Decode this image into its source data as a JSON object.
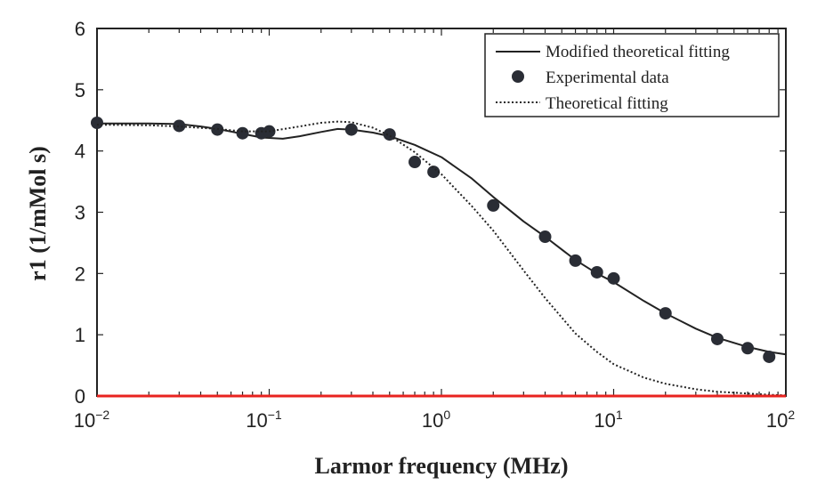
{
  "chart_data": {
    "type": "line",
    "title": "",
    "xlabel": "Larmor frequency (MHz)",
    "ylabel": "r1 (1/mMol s)",
    "xscale": "log",
    "xlim": [
      0.01,
      100
    ],
    "ylim": [
      0,
      6
    ],
    "grid": false,
    "legend_position": "top-right",
    "x_ticks": [
      {
        "value": 0.01,
        "base": "10",
        "exp": "−2"
      },
      {
        "value": 0.1,
        "base": "10",
        "exp": "−1"
      },
      {
        "value": 1,
        "base": "10",
        "exp": "0"
      },
      {
        "value": 10,
        "base": "10",
        "exp": "1"
      },
      {
        "value": 100,
        "base": "10",
        "exp": "2"
      }
    ],
    "y_ticks": [
      "0",
      "1",
      "2",
      "3",
      "4",
      "5",
      "6"
    ],
    "baseline": {
      "y": 0,
      "color": "#e8231f"
    },
    "series": [
      {
        "name": "Modified theoretical fitting",
        "style": "solid",
        "color": "#222222",
        "x": [
          0.01,
          0.02,
          0.03,
          0.04,
          0.05,
          0.07,
          0.09,
          0.12,
          0.15,
          0.2,
          0.25,
          0.3,
          0.4,
          0.5,
          0.7,
          1,
          1.5,
          2,
          3,
          4,
          6,
          8,
          10,
          15,
          20,
          30,
          40,
          60,
          80,
          100
        ],
        "y": [
          4.45,
          4.45,
          4.44,
          4.4,
          4.36,
          4.28,
          4.22,
          4.2,
          4.24,
          4.31,
          4.36,
          4.35,
          4.3,
          4.24,
          4.1,
          3.9,
          3.55,
          3.25,
          2.85,
          2.6,
          2.22,
          2.0,
          1.86,
          1.55,
          1.35,
          1.1,
          0.95,
          0.8,
          0.72,
          0.68
        ]
      },
      {
        "name": "Experimental data",
        "style": "markers",
        "color": "#2a2d35",
        "x": [
          0.01,
          0.03,
          0.05,
          0.07,
          0.09,
          0.1,
          0.3,
          0.5,
          0.7,
          0.9,
          2,
          4,
          6,
          8,
          10,
          20,
          40,
          60,
          80
        ],
        "y": [
          4.46,
          4.41,
          4.35,
          4.29,
          4.29,
          4.32,
          4.35,
          4.27,
          3.82,
          3.66,
          3.11,
          2.6,
          2.21,
          2.02,
          1.92,
          1.35,
          0.93,
          0.78,
          0.64
        ]
      },
      {
        "name": "Theoretical fitting",
        "style": "dotted",
        "color": "#222222",
        "x": [
          0.01,
          0.02,
          0.03,
          0.05,
          0.07,
          0.1,
          0.15,
          0.2,
          0.25,
          0.3,
          0.4,
          0.5,
          0.7,
          1,
          1.5,
          2,
          3,
          4,
          6,
          8,
          10,
          15,
          20,
          30,
          40,
          60,
          80,
          100
        ],
        "y": [
          4.43,
          4.42,
          4.4,
          4.36,
          4.32,
          4.32,
          4.4,
          4.46,
          4.48,
          4.47,
          4.38,
          4.25,
          3.98,
          3.62,
          3.1,
          2.7,
          2.05,
          1.6,
          1.02,
          0.72,
          0.52,
          0.3,
          0.2,
          0.11,
          0.07,
          0.04,
          0.02,
          0.01
        ]
      }
    ]
  }
}
